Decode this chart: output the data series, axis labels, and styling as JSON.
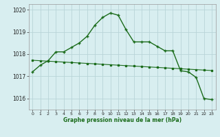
{
  "x": [
    0,
    1,
    2,
    3,
    4,
    5,
    6,
    7,
    8,
    9,
    10,
    11,
    12,
    13,
    14,
    15,
    16,
    17,
    18,
    19,
    20,
    21,
    22,
    23
  ],
  "y_curve": [
    1017.2,
    1017.5,
    1017.7,
    1018.1,
    1018.1,
    1018.3,
    1018.5,
    1018.8,
    1019.3,
    1019.65,
    1019.85,
    1019.75,
    1019.1,
    1018.55,
    1018.55,
    1018.55,
    1018.35,
    1018.15,
    1018.15,
    1017.25,
    1017.2,
    1016.95,
    1016.0,
    1015.95
  ],
  "y_linear": [
    1017.72,
    1017.7,
    1017.68,
    1017.66,
    1017.64,
    1017.62,
    1017.6,
    1017.58,
    1017.56,
    1017.54,
    1017.52,
    1017.5,
    1017.48,
    1017.46,
    1017.44,
    1017.42,
    1017.4,
    1017.38,
    1017.36,
    1017.34,
    1017.32,
    1017.3,
    1017.28,
    1017.26
  ],
  "line_color": "#1a6b1a",
  "background_color": "#d8eef0",
  "grid_color": "#b8d4d8",
  "xlabel": "Graphe pression niveau de la mer (hPa)",
  "ylim": [
    1015.5,
    1020.25
  ],
  "xlim": [
    -0.5,
    23.5
  ],
  "yticks": [
    1016,
    1017,
    1018,
    1019,
    1020
  ],
  "xticks": [
    0,
    1,
    2,
    3,
    4,
    5,
    6,
    7,
    8,
    9,
    10,
    11,
    12,
    13,
    14,
    15,
    16,
    17,
    18,
    19,
    20,
    21,
    22,
    23
  ]
}
